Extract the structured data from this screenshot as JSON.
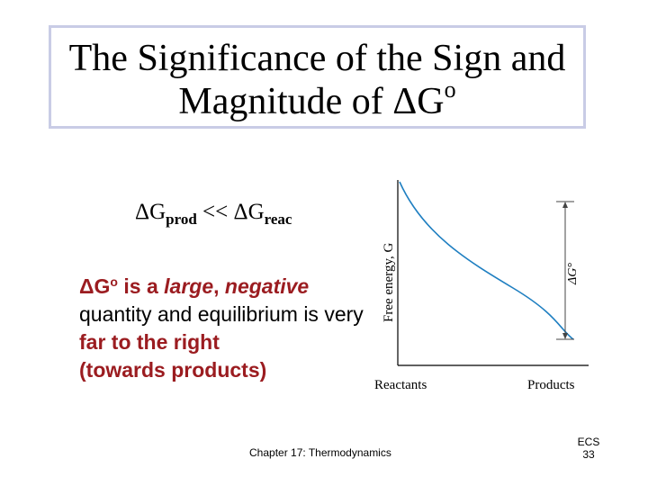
{
  "slide": {
    "title_line1": "The Significance of the Sign and",
    "title_line2_text": "Magnitude of ΔG",
    "title_line2_sup": "o",
    "relation": {
      "left": "ΔG",
      "left_sub": "prod",
      "operator": " << ",
      "right": "ΔG",
      "right_sub": "reac"
    },
    "paragraph": {
      "delta_g": "ΔG",
      "delta_g_sup": "o",
      "is_a": " is a ",
      "large": "large",
      "comma": ", ",
      "negative": "negative",
      "middle": " quantity and equilibrium is very ",
      "far_right": "far to the right",
      "towards": "(towards products)"
    },
    "footer": "Chapter 17: Thermodynamics",
    "page_label_1": "ECS",
    "page_label_2": "33"
  },
  "graph": {
    "y_axis_label": "Free energy, G",
    "x_left_label": "Reactants",
    "x_right_label": "Products",
    "delta_label": "ΔG°"
  },
  "colors": {
    "title_border": "#c9cce6",
    "emphasis_red": "#9b1c20",
    "curve_blue": "#1f7fc1"
  }
}
